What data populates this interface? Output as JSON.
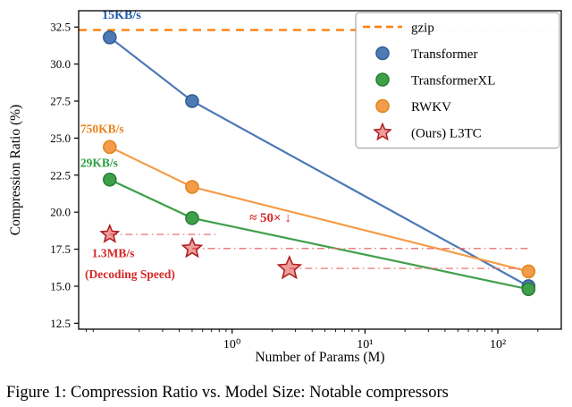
{
  "figure": {
    "caption": "Figure 1: Compression Ratio vs. Model Size: Notable compressors"
  },
  "chart_data": {
    "type": "line",
    "title": "",
    "xlabel": "Number of Params (M)",
    "ylabel": "Compression Ratio (%)",
    "x_scale": "log",
    "xlim": [
      0.07,
      300
    ],
    "ylim": [
      12.1,
      33.6
    ],
    "yticks": [
      12.5,
      15.0,
      17.5,
      20.0,
      22.5,
      25.0,
      27.5,
      30.0,
      32.5
    ],
    "xticks": [
      {
        "value": 1,
        "label": "10⁰"
      },
      {
        "value": 10,
        "label": "10¹"
      },
      {
        "value": 100,
        "label": "10²"
      }
    ],
    "grid": false,
    "legend_position": "upper right",
    "baseline": {
      "label": "gzip",
      "value": 32.3,
      "color": "#ff7f0e",
      "style": "dashed"
    },
    "series": [
      {
        "name": "Transformer",
        "color": "#4d79b5",
        "edge": "#335e96",
        "marker": "circle",
        "line": true,
        "x": [
          0.12,
          0.5,
          170
        ],
        "y": [
          31.8,
          27.5,
          15.0
        ]
      },
      {
        "name": "TransformerXL",
        "color": "#3fa04a",
        "edge": "#2c7d36",
        "marker": "circle",
        "line": true,
        "x": [
          0.12,
          0.5,
          170
        ],
        "y": [
          22.2,
          19.6,
          14.8
        ]
      },
      {
        "name": "RWKV",
        "color": "#f59c4a",
        "edge": "#e0861f",
        "marker": "circle",
        "line": true,
        "x": [
          0.12,
          0.5,
          170
        ],
        "y": [
          24.4,
          21.7,
          16.0
        ]
      },
      {
        "name": "(Ours) L3TC",
        "color": "#d62728",
        "edge": "#b01f20",
        "marker": "star",
        "line": false,
        "x": [
          0.12,
          0.5,
          2.7
        ],
        "y": [
          18.5,
          17.55,
          16.2
        ],
        "sizes": [
          10,
          11,
          13
        ]
      }
    ],
    "dash_dot_links": [
      {
        "y": 18.5,
        "x_start": 0.12,
        "x_end": 0.75
      },
      {
        "y": 17.55,
        "x_start": 0.5,
        "x_end": 170
      },
      {
        "y": 16.2,
        "x_start": 2.7,
        "x_end": 170
      }
    ],
    "annotations": [
      {
        "text": "15KB/s",
        "x": 0.105,
        "y": 33.05,
        "color": "#2059ae",
        "size": 14,
        "weight": "bold"
      },
      {
        "text": "750KB/s",
        "x": 0.072,
        "y": 25.35,
        "color": "#e8821a",
        "size": 13.5,
        "weight": "bold"
      },
      {
        "text": "29KB/s",
        "x": 0.072,
        "y": 23.05,
        "color": "#2e9e3e",
        "size": 13.5,
        "weight": "bold"
      },
      {
        "text": "≈ 50× ↓",
        "x": 1.35,
        "y": 19.35,
        "color": "#d62728",
        "size": 15,
        "weight": "bold"
      },
      {
        "text": "1.3MB/s",
        "x": 0.088,
        "y": 16.95,
        "color": "#d62728",
        "size": 13.5,
        "weight": "bold"
      },
      {
        "text": "(Decoding Speed)",
        "x": 0.078,
        "y": 15.55,
        "color": "#d62728",
        "size": 13.5,
        "weight": "bold"
      }
    ],
    "legend": [
      {
        "label": "gzip",
        "marker": "dashed-line",
        "color": "#ff7f0e",
        "edge": "#ff7f0e"
      },
      {
        "label": "Transformer",
        "marker": "dot",
        "color": "#4d79b5",
        "edge": "#335e96"
      },
      {
        "label": "TransformerXL",
        "marker": "dot",
        "color": "#3fa04a",
        "edge": "#2c7d36"
      },
      {
        "label": "RWKV",
        "marker": "dot",
        "color": "#f59c4a",
        "edge": "#e0861f"
      },
      {
        "label": "(Ours) L3TC",
        "marker": "star",
        "color": "#d62728",
        "edge": "#b01f20"
      }
    ]
  }
}
